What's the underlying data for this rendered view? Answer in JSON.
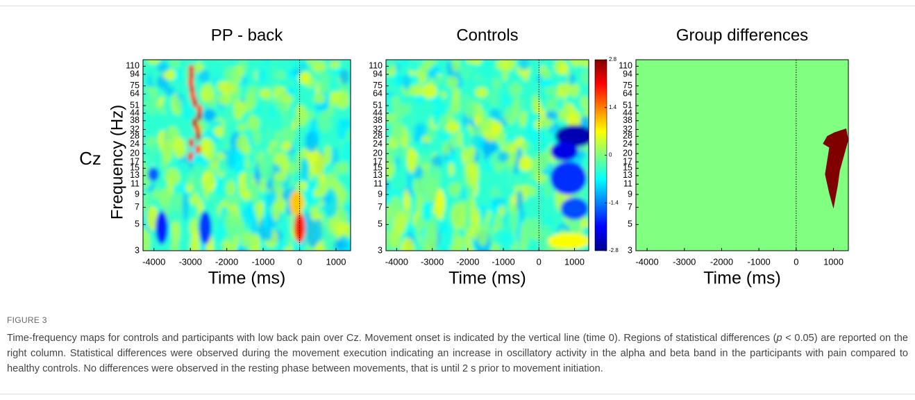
{
  "row_label": "Cz",
  "chart_data": [
    {
      "type": "heatmap",
      "title": "PP - back",
      "xlabel": "Time (ms)",
      "ylabel": "Frequency (Hz)",
      "xlim": [
        -4300,
        1400
      ],
      "xticks": [
        -4000,
        -3000,
        -2000,
        -1000,
        0,
        1000
      ],
      "ylim": [
        3,
        125
      ],
      "yticks": [
        3,
        5,
        7,
        9,
        11,
        13,
        15,
        17,
        20,
        24,
        28,
        32,
        38,
        44,
        51,
        64,
        75,
        94,
        110
      ],
      "log_y": true
    },
    {
      "type": "heatmap",
      "title": "Controls",
      "xlabel": "Time (ms)",
      "xlim": [
        -4300,
        1400
      ],
      "xticks": [
        -4000,
        -3000,
        -2000,
        -1000,
        0,
        1000
      ],
      "ylim": [
        3,
        125
      ],
      "yticks": [
        3,
        5,
        7,
        9,
        11,
        13,
        15,
        17,
        20,
        24,
        28,
        32,
        38,
        44,
        51,
        64,
        75,
        94,
        110
      ],
      "log_y": true,
      "colorbar": {
        "lim": [
          -2.8,
          2.8
        ],
        "ticks": [
          2.8,
          1.4,
          0,
          -1.4,
          -2.8
        ]
      }
    },
    {
      "type": "heatmap",
      "title": "Group differences",
      "xlabel": "Time (ms)",
      "xlim": [
        -4300,
        1400
      ],
      "xticks": [
        -4000,
        -3000,
        -2000,
        -1000,
        0,
        1000
      ],
      "ylim": [
        3,
        125
      ],
      "yticks": [
        3,
        5,
        7,
        9,
        11,
        13,
        15,
        17,
        20,
        24,
        28,
        32,
        38,
        44,
        51,
        64,
        75,
        94,
        110
      ],
      "log_y": true
    }
  ],
  "caption": {
    "label": "FIGURE 3",
    "text": [
      "Time-frequency maps for controls and participants with low back pain over Cz. Movement onset is indicated by the vertical line (time 0). Regions of statistical differences (",
      "p",
      " < 0.05) are reported on the right column. Statistical differences were observed during the movement execution indicating an increase in oscillatory activity in the alpha and beta band in the participants with pain compared to healthy controls. No differences were observed in the resting phase between movements, that is until 2 s prior to movement initiation."
    ]
  }
}
